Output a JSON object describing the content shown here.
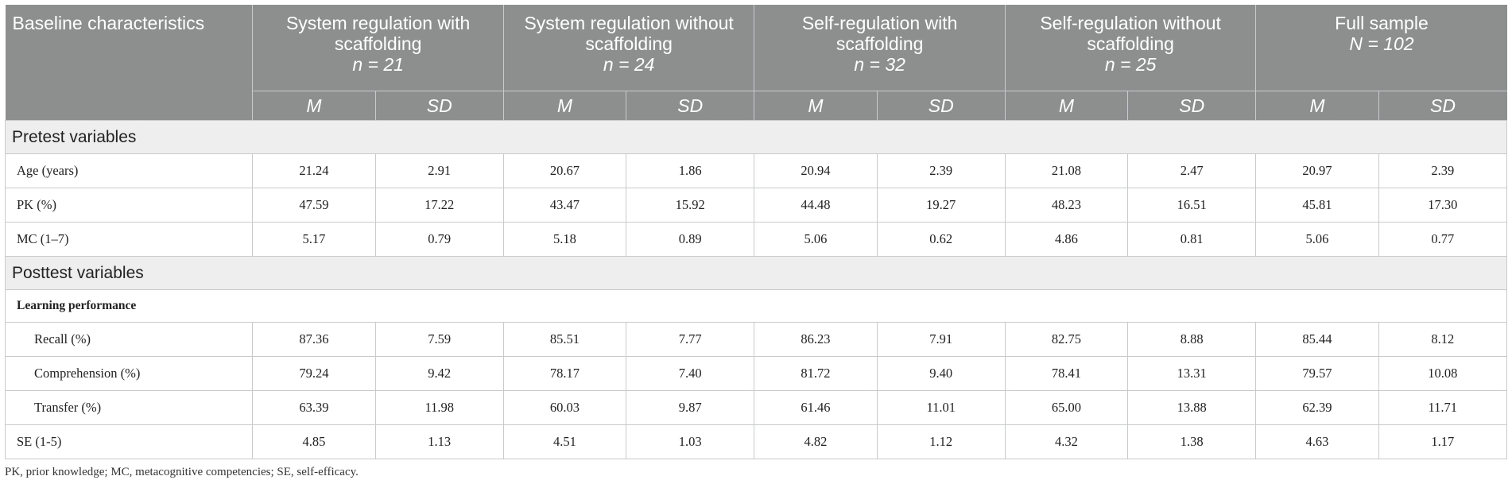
{
  "header": {
    "first_col": "Baseline characteristics",
    "groups": [
      {
        "title": "System regulation with scaffolding",
        "n": "n = 21"
      },
      {
        "title": "System regulation without scaffolding",
        "n": "n = 24"
      },
      {
        "title": "Self-regulation with scaffolding",
        "n": "n = 32"
      },
      {
        "title": "Self-regulation without scaffolding",
        "n": "n = 25"
      },
      {
        "title": "Full sample",
        "n": "N = 102"
      }
    ],
    "m_label": "M",
    "sd_label": "SD"
  },
  "sections": {
    "pretest": "Pretest variables",
    "posttest": "Posttest variables",
    "learning": "Learning performance"
  },
  "rows": {
    "age": {
      "label": "Age (years)",
      "values": [
        "21.24",
        "2.91",
        "20.67",
        "1.86",
        "20.94",
        "2.39",
        "21.08",
        "2.47",
        "20.97",
        "2.39"
      ]
    },
    "pk": {
      "label": "PK (%)",
      "values": [
        "47.59",
        "17.22",
        "43.47",
        "15.92",
        "44.48",
        "19.27",
        "48.23",
        "16.51",
        "45.81",
        "17.30"
      ]
    },
    "mc": {
      "label": "MC (1–7)",
      "values": [
        "5.17",
        "0.79",
        "5.18",
        "0.89",
        "5.06",
        "0.62",
        "4.86",
        "0.81",
        "5.06",
        "0.77"
      ]
    },
    "recall": {
      "label": "Recall (%)",
      "values": [
        "87.36",
        "7.59",
        "85.51",
        "7.77",
        "86.23",
        "7.91",
        "82.75",
        "8.88",
        "85.44",
        "8.12"
      ]
    },
    "comprehension": {
      "label": "Comprehension (%)",
      "values": [
        "79.24",
        "9.42",
        "78.17",
        "7.40",
        "81.72",
        "9.40",
        "78.41",
        "13.31",
        "79.57",
        "10.08"
      ]
    },
    "transfer": {
      "label": "Transfer (%)",
      "values": [
        "63.39",
        "11.98",
        "60.03",
        "9.87",
        "61.46",
        "11.01",
        "65.00",
        "13.88",
        "62.39",
        "11.71"
      ]
    },
    "se": {
      "label": "SE (1-5)",
      "values": [
        "4.85",
        "1.13",
        "4.51",
        "1.03",
        "4.82",
        "1.12",
        "4.32",
        "1.38",
        "4.63",
        "1.17"
      ]
    }
  },
  "footnote": "PK, prior knowledge; MC, metacognitive competencies; SE, self-efficacy."
}
